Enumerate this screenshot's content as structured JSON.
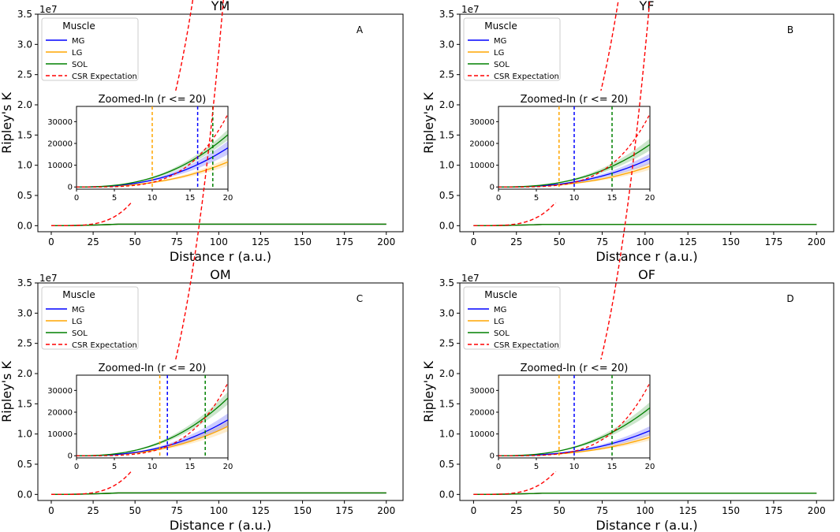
{
  "figure": {
    "ylabel": "Ripley's K",
    "scale_label": "1e7"
  },
  "chart_data": [
    {
      "type": "line",
      "title": "YM",
      "panel_label": "A",
      "xlabel": "Distance r (a.u.)",
      "ylabel": "Ripley's K",
      "xlim": [
        -8,
        210
      ],
      "ylim": [
        -1000000,
        35000000
      ],
      "x_ticks": [
        0,
        25,
        50,
        75,
        100,
        125,
        150,
        175,
        200
      ],
      "y_ticks": [
        0,
        0.5,
        1.0,
        1.5,
        2.0,
        2.5,
        3.0,
        3.5
      ],
      "y_tick_labels": [
        "0.0",
        "0.5",
        "1.0",
        "1.5",
        "2.0",
        "2.5",
        "3.0",
        "3.5"
      ],
      "y_scale_label": "1e7",
      "legend": {
        "title": "Muscle",
        "position": "top-left",
        "entries": [
          {
            "label": "MG",
            "color": "#0000ff",
            "style": "solid"
          },
          {
            "label": "LG",
            "color": "#ffa500",
            "style": "solid"
          },
          {
            "label": "SOL",
            "color": "#008000",
            "style": "solid"
          },
          {
            "label": "CSR Expectation",
            "color": "#ff0000",
            "style": "dashed"
          }
        ]
      },
      "series": [
        {
          "name": "MG",
          "color": "#0000ff",
          "final_value_r20": 18000,
          "band": 0.17
        },
        {
          "name": "LG",
          "color": "#ffa500",
          "final_value_r20": 11500,
          "band": 0.15
        },
        {
          "name": "SOL",
          "color": "#008000",
          "final_value_r20": 24000,
          "band": 0.1
        },
        {
          "name": "CSR Expectation",
          "formula": "pi*r^4/3",
          "x_max": 200,
          "color": "#ff0000",
          "style": "dashed"
        }
      ],
      "main_series_plateau": 250000,
      "inset": {
        "title": "Zoomed-In (r <= 20)",
        "xlim": [
          0,
          20
        ],
        "ylim": [
          -1000,
          37000
        ],
        "x_ticks": [
          0,
          5,
          10,
          15,
          20
        ],
        "y_ticks": [
          0,
          10000,
          20000,
          30000
        ],
        "y_tick_labels": [
          "0",
          "10000",
          "20000",
          "30000"
        ],
        "vlines": [
          {
            "series": "LG",
            "x": 10,
            "color": "#ffa500"
          },
          {
            "series": "MG",
            "x": 16,
            "color": "#0000ff"
          },
          {
            "series": "SOL",
            "x": 18,
            "color": "#008000"
          }
        ]
      }
    },
    {
      "type": "line",
      "title": "YF",
      "panel_label": "B",
      "xlabel": "Distance r (a.u.)",
      "ylabel": "Ripley's K",
      "xlim": [
        -8,
        210
      ],
      "ylim": [
        -1000000,
        35000000
      ],
      "x_ticks": [
        0,
        25,
        50,
        75,
        100,
        125,
        150,
        175,
        200
      ],
      "y_ticks": [
        0,
        0.5,
        1.0,
        1.5,
        2.0,
        2.5,
        3.0,
        3.5
      ],
      "y_tick_labels": [
        "0.0",
        "0.5",
        "1.0",
        "1.5",
        "2.0",
        "2.5",
        "3.0",
        "3.5"
      ],
      "y_scale_label": "1e7",
      "legend": {
        "title": "Muscle",
        "position": "top-left",
        "entries": [
          {
            "label": "MG",
            "color": "#0000ff",
            "style": "solid"
          },
          {
            "label": "LG",
            "color": "#ffa500",
            "style": "solid"
          },
          {
            "label": "SOL",
            "color": "#008000",
            "style": "solid"
          },
          {
            "label": "CSR Expectation",
            "color": "#ff0000",
            "style": "dashed"
          }
        ]
      },
      "series": [
        {
          "name": "MG",
          "color": "#0000ff",
          "final_value_r20": 13000,
          "band": 0.18
        },
        {
          "name": "LG",
          "color": "#ffa500",
          "final_value_r20": 9500,
          "band": 0.17
        },
        {
          "name": "SOL",
          "color": "#008000",
          "final_value_r20": 19500,
          "band": 0.14
        },
        {
          "name": "CSR Expectation",
          "formula": "pi*r^4/3",
          "x_max": 200,
          "color": "#ff0000",
          "style": "dashed"
        }
      ],
      "main_series_plateau": 200000,
      "inset": {
        "title": "Zoomed-In (r <= 20)",
        "xlim": [
          0,
          20
        ],
        "ylim": [
          -1000,
          37000
        ],
        "x_ticks": [
          0,
          5,
          10,
          15,
          20
        ],
        "y_ticks": [
          0,
          10000,
          20000,
          30000
        ],
        "y_tick_labels": [
          "0",
          "10000",
          "20000",
          "30000"
        ],
        "vlines": [
          {
            "series": "LG",
            "x": 8,
            "color": "#ffa500"
          },
          {
            "series": "MG",
            "x": 10,
            "color": "#0000ff"
          },
          {
            "series": "SOL",
            "x": 15,
            "color": "#008000"
          }
        ]
      }
    },
    {
      "type": "line",
      "title": "OM",
      "panel_label": "C",
      "xlabel": "Distance r (a.u.)",
      "ylabel": "Ripley's K",
      "xlim": [
        -8,
        210
      ],
      "ylim": [
        -1000000,
        35000000
      ],
      "x_ticks": [
        0,
        25,
        50,
        75,
        100,
        125,
        150,
        175,
        200
      ],
      "y_ticks": [
        0,
        0.5,
        1.0,
        1.5,
        2.0,
        2.5,
        3.0,
        3.5
      ],
      "y_tick_labels": [
        "0.0",
        "0.5",
        "1.0",
        "1.5",
        "2.0",
        "2.5",
        "3.0",
        "3.5"
      ],
      "y_scale_label": "1e7",
      "legend": {
        "title": "Muscle",
        "position": "top-left",
        "entries": [
          {
            "label": "MG",
            "color": "#0000ff",
            "style": "solid"
          },
          {
            "label": "LG",
            "color": "#ffa500",
            "style": "solid"
          },
          {
            "label": "SOL",
            "color": "#008000",
            "style": "solid"
          },
          {
            "label": "CSR Expectation",
            "color": "#ff0000",
            "style": "dashed"
          }
        ]
      },
      "series": [
        {
          "name": "MG",
          "color": "#0000ff",
          "final_value_r20": 16500,
          "band": 0.18
        },
        {
          "name": "LG",
          "color": "#ffa500",
          "final_value_r20": 13500,
          "band": 0.17
        },
        {
          "name": "SOL",
          "color": "#008000",
          "final_value_r20": 26500,
          "band": 0.11
        },
        {
          "name": "CSR Expectation",
          "formula": "pi*r^4/3",
          "x_max": 200,
          "color": "#ff0000",
          "style": "dashed"
        }
      ],
      "main_series_plateau": 250000,
      "inset": {
        "title": "Zoomed-In (r <= 20)",
        "xlim": [
          0,
          20
        ],
        "ylim": [
          -1000,
          37000
        ],
        "x_ticks": [
          0,
          5,
          10,
          15,
          20
        ],
        "y_ticks": [
          0,
          10000,
          20000,
          30000
        ],
        "y_tick_labels": [
          "0",
          "10000",
          "20000",
          "30000"
        ],
        "vlines": [
          {
            "series": "LG",
            "x": 11,
            "color": "#ffa500"
          },
          {
            "series": "MG",
            "x": 12,
            "color": "#0000ff"
          },
          {
            "series": "SOL",
            "x": 17,
            "color": "#008000"
          }
        ]
      }
    },
    {
      "type": "line",
      "title": "OF",
      "panel_label": "D",
      "xlabel": "Distance r (a.u.)",
      "ylabel": "Ripley's K",
      "xlim": [
        -8,
        210
      ],
      "ylim": [
        -1000000,
        35000000
      ],
      "x_ticks": [
        0,
        25,
        50,
        75,
        100,
        125,
        150,
        175,
        200
      ],
      "y_ticks": [
        0,
        0.5,
        1.0,
        1.5,
        2.0,
        2.5,
        3.0,
        3.5
      ],
      "y_tick_labels": [
        "0.0",
        "0.5",
        "1.0",
        "1.5",
        "2.0",
        "2.5",
        "3.0",
        "3.5"
      ],
      "y_scale_label": "1e7",
      "legend": {
        "title": "Muscle",
        "position": "top-left",
        "entries": [
          {
            "label": "MG",
            "color": "#0000ff",
            "style": "solid"
          },
          {
            "label": "LG",
            "color": "#ffa500",
            "style": "solid"
          },
          {
            "label": "SOL",
            "color": "#008000",
            "style": "solid"
          },
          {
            "label": "CSR Expectation",
            "color": "#ff0000",
            "style": "dashed"
          }
        ]
      },
      "series": [
        {
          "name": "MG",
          "color": "#0000ff",
          "final_value_r20": 11500,
          "band": 0.18
        },
        {
          "name": "LG",
          "color": "#ffa500",
          "final_value_r20": 8500,
          "band": 0.17
        },
        {
          "name": "SOL",
          "color": "#008000",
          "final_value_r20": 22000,
          "band": 0.12
        },
        {
          "name": "CSR Expectation",
          "formula": "pi*r^4/3",
          "x_max": 200,
          "color": "#ff0000",
          "style": "dashed"
        }
      ],
      "main_series_plateau": 200000,
      "inset": {
        "title": "Zoomed-In (r <= 20)",
        "xlim": [
          0,
          20
        ],
        "ylim": [
          -1000,
          37000
        ],
        "x_ticks": [
          0,
          5,
          10,
          15,
          20
        ],
        "y_ticks": [
          0,
          10000,
          20000,
          30000
        ],
        "y_tick_labels": [
          "0",
          "10000",
          "20000",
          "30000"
        ],
        "vlines": [
          {
            "series": "LG",
            "x": 8,
            "color": "#ffa500"
          },
          {
            "series": "MG",
            "x": 10,
            "color": "#0000ff"
          },
          {
            "series": "SOL",
            "x": 15,
            "color": "#008000"
          }
        ]
      }
    }
  ]
}
